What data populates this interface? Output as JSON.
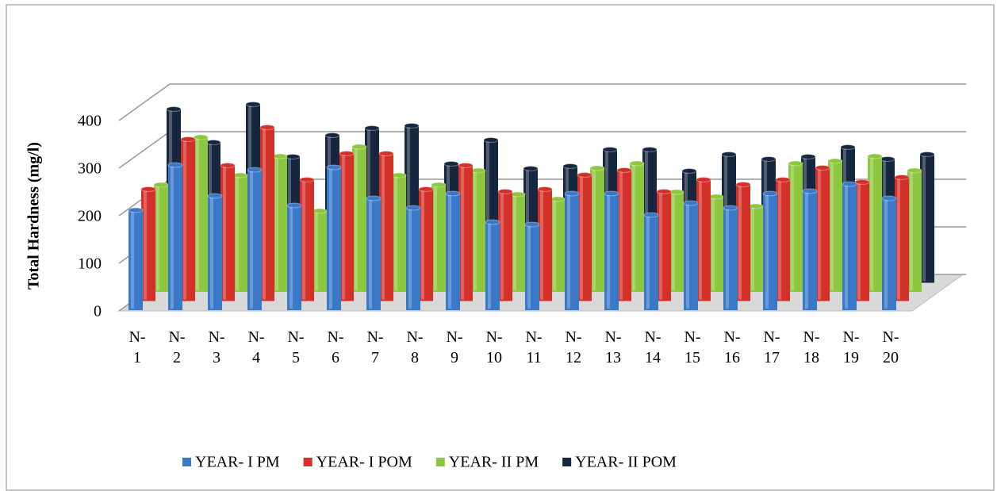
{
  "chart_data": {
    "type": "bar3d",
    "y_label": "Total Hardness (mg/l)",
    "categories": [
      "N-1",
      "N-2",
      "N-3",
      "N-4",
      "N-5",
      "N-6",
      "N-7",
      "N-8",
      "N-9",
      "N-10",
      "N-11",
      "N-12",
      "N-13",
      "N-14",
      "N-15",
      "N-16",
      "N-17",
      "N-18",
      "N-19",
      "N-20"
    ],
    "series": [
      {
        "name": "YEAR- I PM",
        "color": "#3a78c8",
        "values": [
          210,
          305,
          240,
          295,
          220,
          300,
          235,
          215,
          245,
          185,
          180,
          245,
          245,
          200,
          225,
          215,
          245,
          250,
          265,
          235
        ]
      },
      {
        "name": "YEAR- I POM",
        "color": "#d4302a",
        "values": [
          235,
          340,
          285,
          365,
          255,
          310,
          310,
          235,
          285,
          230,
          235,
          265,
          275,
          230,
          255,
          245,
          255,
          280,
          250,
          260
        ]
      },
      {
        "name": "YEAR- II PM",
        "color": "#8dc63f",
        "values": [
          225,
          325,
          245,
          285,
          170,
          305,
          245,
          225,
          255,
          205,
          195,
          260,
          270,
          210,
          200,
          180,
          270,
          275,
          285,
          255
        ]
      },
      {
        "name": "YEAR- II POM",
        "color": "#17263f",
        "values": [
          365,
          295,
          375,
          265,
          310,
          325,
          330,
          250,
          300,
          240,
          245,
          280,
          280,
          235,
          270,
          260,
          265,
          285,
          260,
          270
        ]
      }
    ],
    "ylim": [
      0,
      400
    ],
    "yticks": [
      0,
      100,
      200,
      300,
      400
    ],
    "grid": true,
    "legend": "bottom"
  }
}
